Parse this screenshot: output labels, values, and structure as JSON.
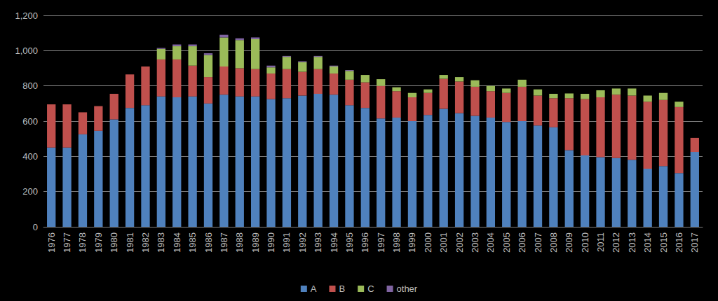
{
  "chart_data": {
    "type": "bar",
    "stacked": true,
    "grid": true,
    "legend": "bottom",
    "categories": [
      "1976",
      "1977",
      "1978",
      "1979",
      "1980",
      "1981",
      "1982",
      "1983",
      "1984",
      "1985",
      "1986",
      "1987",
      "1988",
      "1989",
      "1990",
      "1991",
      "1992",
      "1993",
      "1994",
      "1995",
      "1996",
      "1997",
      "1998",
      "1999",
      "2000",
      "2001",
      "2002",
      "2003",
      "2004",
      "2005",
      "2006",
      "2007",
      "2008",
      "2009",
      "2010",
      "2011",
      "2012",
      "2013",
      "2014",
      "2015",
      "2016",
      "2017"
    ],
    "ylim": [
      0,
      1200
    ],
    "yticks": [
      0,
      200,
      400,
      600,
      800,
      1000,
      1200
    ],
    "series": [
      {
        "name": "A",
        "color": "#4f81bd",
        "values": [
          450,
          450,
          525,
          545,
          610,
          675,
          690,
          740,
          735,
          740,
          700,
          750,
          740,
          740,
          725,
          730,
          745,
          755,
          750,
          690,
          675,
          615,
          620,
          600,
          635,
          670,
          645,
          630,
          620,
          595,
          600,
          575,
          565,
          435,
          405,
          395,
          390,
          380,
          330,
          345,
          305,
          425
        ]
      },
      {
        "name": "B",
        "color": "#c0504d",
        "values": [
          245,
          245,
          125,
          140,
          145,
          190,
          220,
          210,
          215,
          175,
          150,
          160,
          160,
          155,
          145,
          165,
          135,
          140,
          120,
          145,
          145,
          185,
          150,
          135,
          125,
          170,
          180,
          165,
          150,
          165,
          195,
          170,
          165,
          295,
          320,
          340,
          360,
          365,
          380,
          375,
          375,
          80
        ]
      },
      {
        "name": "C",
        "color": "#9bbb59",
        "values": [
          0,
          0,
          0,
          0,
          0,
          0,
          0,
          60,
          75,
          110,
          125,
          165,
          160,
          170,
          35,
          70,
          55,
          70,
          40,
          50,
          42,
          38,
          22,
          25,
          20,
          22,
          25,
          37,
          30,
          25,
          40,
          35,
          25,
          27,
          30,
          40,
          35,
          40,
          35,
          40,
          30,
          0
        ]
      },
      {
        "name": "other",
        "color": "#8064a2",
        "values": [
          0,
          0,
          0,
          0,
          0,
          0,
          0,
          5,
          10,
          10,
          10,
          15,
          10,
          10,
          10,
          5,
          5,
          5,
          5,
          5,
          0,
          0,
          0,
          0,
          0,
          0,
          0,
          0,
          0,
          0,
          0,
          0,
          0,
          0,
          0,
          0,
          0,
          0,
          0,
          0,
          0,
          0
        ]
      }
    ]
  }
}
